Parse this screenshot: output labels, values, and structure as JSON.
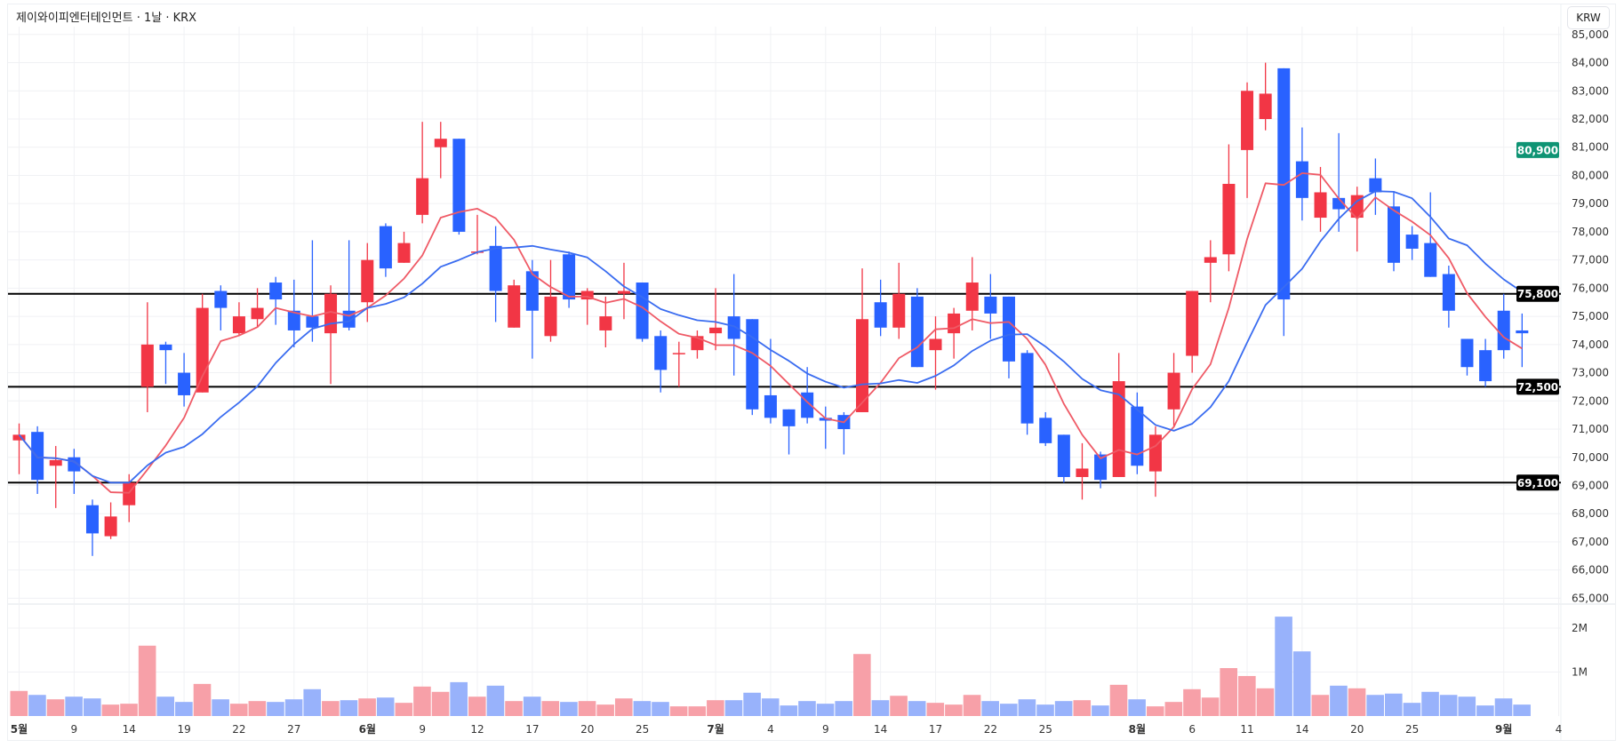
{
  "header": {
    "title": "제이와이피엔터테인먼트 · 1날 · KRX",
    "currency": "KRW"
  },
  "colors": {
    "up": "#f23645",
    "down": "#2962ff",
    "up_volume": "#f7a0a8",
    "down_volume": "#98b2fb",
    "ma5": "#ef5a66",
    "ma10": "#3a6cf0",
    "marker": "#0f9474",
    "level": "#000000"
  },
  "chart_data": {
    "type": "candlestick",
    "title": "제이와이피엔터테인먼트 · 1날 · KRX",
    "ylabel": "KRW",
    "ylim": [
      65000,
      85000
    ],
    "y_ticks": [
      "65,000",
      "66,000",
      "67,000",
      "68,000",
      "69,000",
      "70,000",
      "71,000",
      "72,000",
      "73,000",
      "74,000",
      "75,000",
      "76,000",
      "77,000",
      "78,000",
      "79,000",
      "80,000",
      "81,000",
      "82,000",
      "83,000",
      "84,000",
      "85,000"
    ],
    "volume_ticks": [
      {
        "label": "1M",
        "value": 1
      },
      {
        "label": "2M",
        "value": 2
      }
    ],
    "volume_unit": "M",
    "moving_averages": [
      {
        "name": "MA5",
        "period": 5,
        "color_key": "ma5"
      },
      {
        "name": "MA10",
        "period": 10,
        "color_key": "ma10"
      }
    ],
    "horizontal_levels": [
      {
        "value": 75800,
        "label": "75,800"
      },
      {
        "value": 72500,
        "label": "72,500"
      },
      {
        "value": 69100,
        "label": "69,100"
      }
    ],
    "price_marker": {
      "value": 80900,
      "label": "80,900"
    },
    "x_ticks": [
      {
        "label": "5월",
        "date": "05-02",
        "month": true
      },
      {
        "label": "9",
        "date": "05-09"
      },
      {
        "label": "14",
        "date": "05-14"
      },
      {
        "label": "19",
        "date": "05-19"
      },
      {
        "label": "22",
        "date": "05-22"
      },
      {
        "label": "27",
        "date": "05-27"
      },
      {
        "label": "6월",
        "date": "06-02",
        "month": true
      },
      {
        "label": "9",
        "date": "06-09"
      },
      {
        "label": "12",
        "date": "06-12"
      },
      {
        "label": "17",
        "date": "06-17"
      },
      {
        "label": "20",
        "date": "06-20"
      },
      {
        "label": "25",
        "date": "06-25"
      },
      {
        "label": "7월",
        "date": "07-01",
        "month": true
      },
      {
        "label": "4",
        "date": "07-04"
      },
      {
        "label": "9",
        "date": "07-09"
      },
      {
        "label": "14",
        "date": "07-14"
      },
      {
        "label": "17",
        "date": "07-17"
      },
      {
        "label": "22",
        "date": "07-22"
      },
      {
        "label": "25",
        "date": "07-25"
      },
      {
        "label": "8월",
        "date": "08-01",
        "month": true
      },
      {
        "label": "6",
        "date": "08-06"
      },
      {
        "label": "11",
        "date": "08-11"
      },
      {
        "label": "14",
        "date": "08-14"
      },
      {
        "label": "20",
        "date": "08-20"
      },
      {
        "label": "25",
        "date": "08-25"
      },
      {
        "label": "9월",
        "date": "09-01",
        "month": true
      },
      {
        "label": "4",
        "date": "09-04"
      }
    ],
    "columns": [
      "date",
      "open",
      "high",
      "low",
      "close",
      "volume_M"
    ],
    "candles": [
      [
        "05-02",
        70600,
        71200,
        69400,
        70800,
        0.57
      ],
      [
        "05-07",
        70900,
        71100,
        68700,
        69200,
        0.48
      ],
      [
        "05-08",
        69700,
        70400,
        68200,
        69900,
        0.38
      ],
      [
        "05-09",
        70000,
        70300,
        68700,
        69500,
        0.44
      ],
      [
        "05-12",
        68300,
        68500,
        66500,
        67300,
        0.4
      ],
      [
        "05-13",
        67200,
        68400,
        67100,
        67900,
        0.26
      ],
      [
        "05-14",
        68300,
        69400,
        67700,
        69100,
        0.28
      ],
      [
        "05-15",
        72500,
        75500,
        71600,
        74000,
        1.6
      ],
      [
        "05-16",
        74000,
        74100,
        72600,
        73800,
        0.44
      ],
      [
        "05-19",
        73000,
        73700,
        71800,
        72200,
        0.32
      ],
      [
        "05-20",
        72300,
        75800,
        72300,
        75300,
        0.73
      ],
      [
        "05-21",
        75900,
        76100,
        74500,
        75300,
        0.38
      ],
      [
        "05-22",
        74400,
        75500,
        74300,
        75000,
        0.28
      ],
      [
        "05-23",
        74900,
        76000,
        74600,
        75300,
        0.34
      ],
      [
        "05-26",
        76200,
        76400,
        74700,
        75600,
        0.32
      ],
      [
        "05-27",
        75200,
        76300,
        73900,
        74500,
        0.38
      ],
      [
        "05-28",
        75000,
        77700,
        74100,
        74600,
        0.61
      ],
      [
        "05-29",
        74400,
        76100,
        72600,
        75800,
        0.34
      ],
      [
        "05-30",
        75200,
        77700,
        74500,
        74600,
        0.36
      ],
      [
        "06-02",
        75500,
        77600,
        74800,
        77000,
        0.4
      ],
      [
        "06-04",
        78200,
        78300,
        76400,
        76700,
        0.42
      ],
      [
        "06-05",
        76900,
        78000,
        76900,
        77600,
        0.3
      ],
      [
        "06-09",
        78600,
        81900,
        78300,
        79900,
        0.67
      ],
      [
        "06-10",
        81000,
        81900,
        79900,
        81300,
        0.55
      ],
      [
        "06-11",
        81300,
        81300,
        77900,
        78000,
        0.77
      ],
      [
        "06-12",
        77300,
        78600,
        77200,
        77300,
        0.44
      ],
      [
        "06-13",
        77500,
        78200,
        74800,
        75900,
        0.69
      ],
      [
        "06-16",
        74600,
        76300,
        74600,
        76100,
        0.34
      ],
      [
        "06-17",
        76600,
        77000,
        73500,
        75200,
        0.44
      ],
      [
        "06-18",
        74300,
        77000,
        74100,
        75700,
        0.34
      ],
      [
        "06-19",
        77200,
        77300,
        75300,
        75600,
        0.32
      ],
      [
        "06-20",
        75600,
        76000,
        74700,
        75900,
        0.34
      ],
      [
        "06-23",
        74500,
        75700,
        73900,
        75000,
        0.26
      ],
      [
        "06-24",
        75800,
        76900,
        74900,
        75900,
        0.4
      ],
      [
        "06-25",
        76200,
        76200,
        74100,
        74200,
        0.34
      ],
      [
        "06-26",
        74300,
        74500,
        72300,
        73100,
        0.32
      ],
      [
        "06-27",
        73700,
        74100,
        72500,
        73700,
        0.22
      ],
      [
        "06-30",
        73800,
        74500,
        73500,
        74300,
        0.22
      ],
      [
        "07-01",
        74400,
        76000,
        73800,
        74600,
        0.36
      ],
      [
        "07-02",
        75000,
        76500,
        72900,
        74200,
        0.36
      ],
      [
        "07-03",
        74900,
        74900,
        71500,
        71700,
        0.53
      ],
      [
        "07-04",
        72200,
        74200,
        71200,
        71400,
        0.4
      ],
      [
        "07-07",
        71700,
        71700,
        70100,
        71100,
        0.24
      ],
      [
        "07-08",
        72300,
        73200,
        71200,
        71400,
        0.34
      ],
      [
        "07-09",
        71400,
        71800,
        70300,
        71300,
        0.28
      ],
      [
        "07-10",
        71500,
        71600,
        70100,
        71000,
        0.34
      ],
      [
        "07-11",
        71600,
        76700,
        71600,
        74900,
        1.41
      ],
      [
        "07-14",
        75500,
        76300,
        74300,
        74600,
        0.36
      ],
      [
        "07-15",
        74600,
        76900,
        74200,
        75800,
        0.46
      ],
      [
        "07-16",
        75700,
        76000,
        73200,
        73200,
        0.34
      ],
      [
        "07-17",
        73800,
        75000,
        72400,
        74200,
        0.3
      ],
      [
        "07-18",
        74400,
        75300,
        73500,
        75100,
        0.26
      ],
      [
        "07-21",
        75200,
        77100,
        74500,
        76200,
        0.48
      ],
      [
        "07-22",
        75700,
        76500,
        74200,
        75100,
        0.34
      ],
      [
        "07-23",
        75700,
        75700,
        72800,
        73400,
        0.28
      ],
      [
        "07-24",
        73700,
        73800,
        70800,
        71200,
        0.38
      ],
      [
        "07-25",
        71400,
        71600,
        70400,
        70500,
        0.26
      ],
      [
        "07-28",
        70800,
        70800,
        69100,
        69300,
        0.34
      ],
      [
        "07-29",
        69300,
        70500,
        68500,
        69600,
        0.36
      ],
      [
        "07-30",
        70100,
        70200,
        68900,
        69200,
        0.24
      ],
      [
        "07-31",
        69300,
        73700,
        69300,
        72700,
        0.71
      ],
      [
        "08-01",
        71800,
        72300,
        69400,
        69700,
        0.38
      ],
      [
        "08-04",
        69500,
        71100,
        68600,
        70800,
        0.22
      ],
      [
        "08-05",
        71700,
        73700,
        71100,
        73000,
        0.32
      ],
      [
        "08-06",
        73600,
        75900,
        73000,
        75900,
        0.61
      ],
      [
        "08-07",
        76900,
        77700,
        75500,
        77100,
        0.42
      ],
      [
        "08-08",
        77200,
        81100,
        76600,
        79700,
        1.09
      ],
      [
        "08-11",
        80900,
        83300,
        79200,
        83000,
        0.91
      ],
      [
        "08-12",
        82000,
        84000,
        81600,
        82900,
        0.63
      ],
      [
        "08-13",
        83800,
        83800,
        74300,
        75600,
        2.26
      ],
      [
        "08-14",
        80500,
        81700,
        78400,
        79200,
        1.47
      ],
      [
        "08-18",
        78500,
        80300,
        78000,
        79400,
        0.48
      ],
      [
        "08-19",
        79200,
        81500,
        78000,
        78800,
        0.69
      ],
      [
        "08-20",
        78500,
        79600,
        77300,
        79300,
        0.63
      ],
      [
        "08-21",
        79900,
        80600,
        78600,
        79400,
        0.48
      ],
      [
        "08-22",
        78900,
        79400,
        76600,
        76900,
        0.51
      ],
      [
        "08-25",
        77900,
        78200,
        77000,
        77400,
        0.3
      ],
      [
        "08-26",
        77600,
        79400,
        76400,
        76400,
        0.55
      ],
      [
        "08-27",
        76500,
        76800,
        74600,
        75200,
        0.48
      ],
      [
        "08-28",
        74200,
        74200,
        72900,
        73200,
        0.44
      ],
      [
        "08-29",
        73800,
        74200,
        72500,
        72700,
        0.24
      ],
      [
        "09-01",
        75200,
        75800,
        73500,
        73800,
        0.4
      ],
      [
        "09-02",
        74500,
        75100,
        73200,
        74400,
        0.26
      ]
    ]
  }
}
